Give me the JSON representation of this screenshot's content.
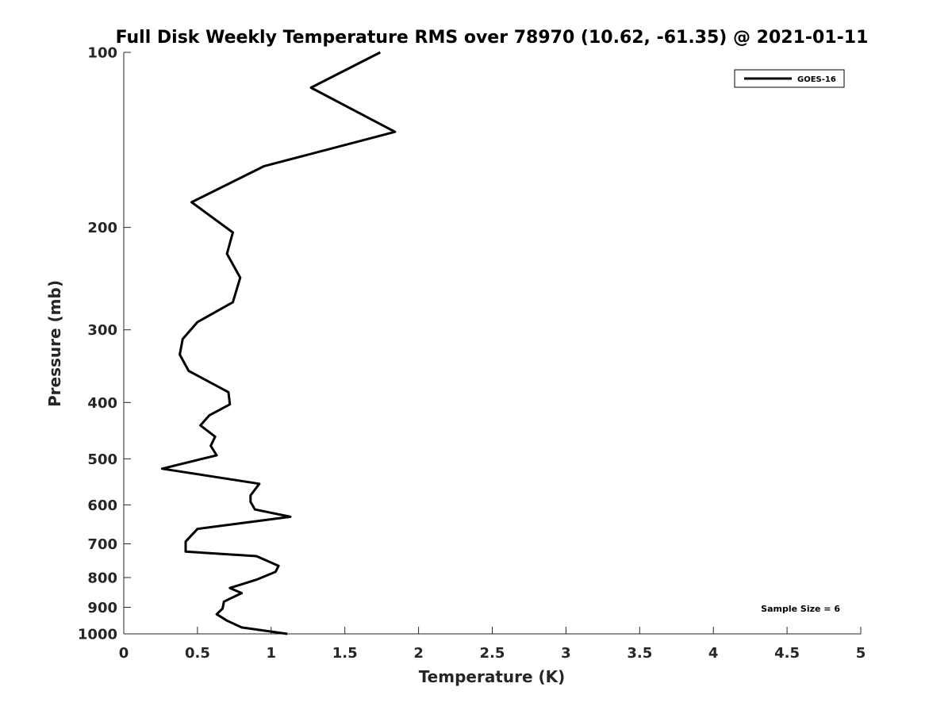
{
  "chart_data": {
    "type": "line",
    "title": "Full Disk Weekly Temperature RMS over 78970 (10.62, -61.35) @ 2021-01-11",
    "xlabel": "Temperature (K)",
    "ylabel": "Pressure (mb)",
    "xlim": [
      0,
      5
    ],
    "ylim": [
      100,
      1000
    ],
    "y_scale": "log",
    "y_reversed": true,
    "x_ticks": [
      0,
      0.5,
      1,
      1.5,
      2,
      2.5,
      3,
      3.5,
      4,
      4.5,
      5
    ],
    "x_tick_labels": [
      "0",
      "0.5",
      "1",
      "1.5",
      "2",
      "2.5",
      "3",
      "3.5",
      "4",
      "4.5",
      "5"
    ],
    "y_ticks": [
      100,
      200,
      300,
      400,
      500,
      600,
      700,
      800,
      900,
      1000
    ],
    "y_tick_labels": [
      "100",
      "200",
      "300",
      "400",
      "500",
      "600",
      "700",
      "800",
      "900",
      "1000"
    ],
    "legend_position": "top-right",
    "series": [
      {
        "name": "GOES-16",
        "color": "#000000",
        "x": [
          1.74,
          1.27,
          1.84,
          0.95,
          0.46,
          0.74,
          0.7,
          0.79,
          0.74,
          0.5,
          0.4,
          0.38,
          0.44,
          0.71,
          0.72,
          0.58,
          0.52,
          0.62,
          0.59,
          0.63,
          0.26,
          0.92,
          0.86,
          0.86,
          0.89,
          1.13,
          0.5,
          0.42,
          0.42,
          0.9,
          1.05,
          1.03,
          0.9,
          0.72,
          0.8,
          0.68,
          0.67,
          0.63,
          0.7,
          0.8,
          1.11
        ],
        "y": [
          100,
          115,
          137,
          157,
          181,
          204,
          222,
          244,
          269,
          291,
          311,
          331,
          353,
          384,
          403,
          421,
          438,
          458,
          475,
          493,
          520,
          552,
          578,
          593,
          611,
          629,
          660,
          694,
          722,
          735,
          764,
          782,
          807,
          834,
          851,
          880,
          905,
          925,
          949,
          975,
          1000
        ]
      }
    ],
    "annotations": [
      {
        "text": "Sample Size = 6",
        "position": "bottom-right"
      }
    ]
  }
}
